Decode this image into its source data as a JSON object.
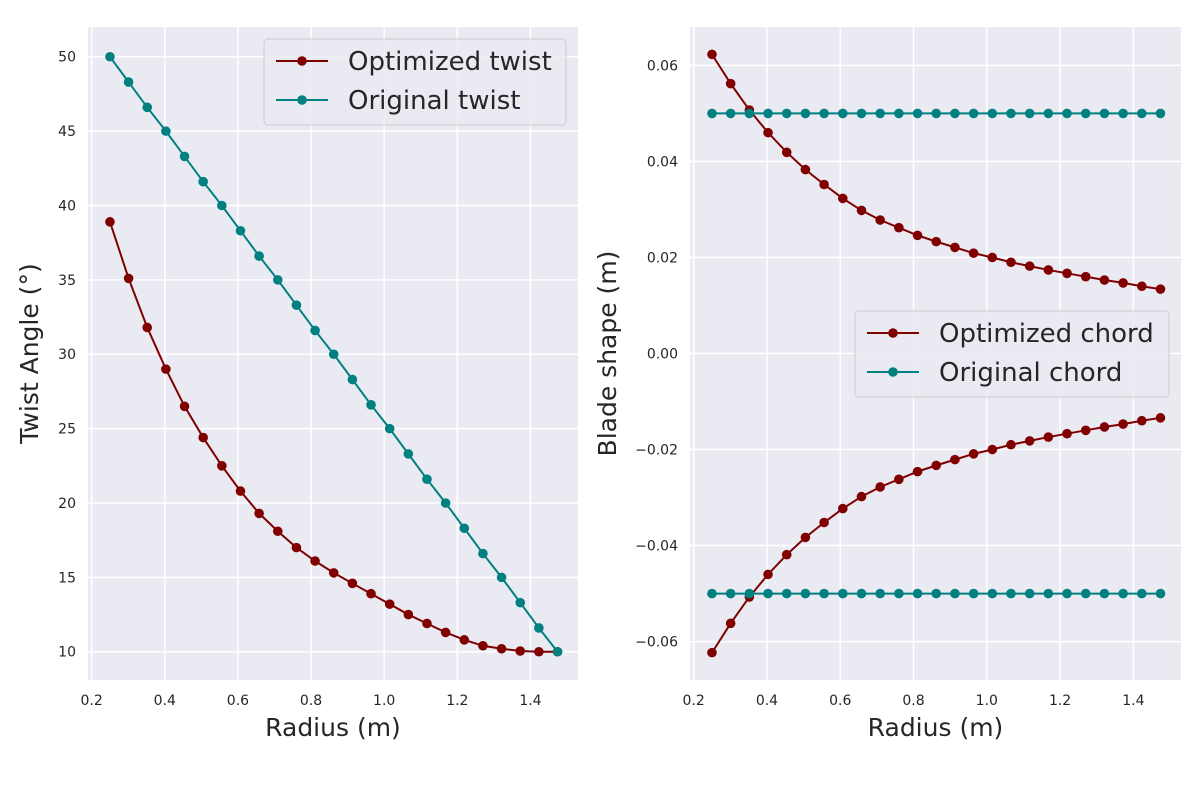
{
  "chart_data": [
    {
      "type": "line",
      "xlabel": "Radius (m)",
      "ylabel": "Twist Angle (°)",
      "xlim": [
        0.19,
        1.53
      ],
      "ylim": [
        8.1,
        52
      ],
      "xticks": [
        "0.2",
        "0.4",
        "0.6",
        "0.8",
        "1.0",
        "1.2",
        "1.4"
      ],
      "xtick_values": [
        0.2,
        0.4,
        0.6,
        0.8,
        1.0,
        1.2,
        1.4
      ],
      "yticks": [
        "10",
        "15",
        "20",
        "25",
        "30",
        "35",
        "40",
        "45",
        "50"
      ],
      "ytick_values": [
        10,
        15,
        20,
        25,
        30,
        35,
        40,
        45,
        50
      ],
      "grid": true,
      "legend_position": "top-right",
      "x": [
        0.25,
        0.301,
        0.352,
        0.403,
        0.454,
        0.505,
        0.556,
        0.607,
        0.658,
        0.709,
        0.76,
        0.811,
        0.862,
        0.913,
        0.964,
        1.015,
        1.066,
        1.117,
        1.168,
        1.219,
        1.27,
        1.321,
        1.372,
        1.423,
        1.474
      ],
      "series": [
        {
          "name": "Optimized twist",
          "color": "#800000",
          "values": [
            38.9,
            35.1,
            31.8,
            29.0,
            26.5,
            24.4,
            22.5,
            20.8,
            19.3,
            18.1,
            17.0,
            16.1,
            15.3,
            14.6,
            13.9,
            13.2,
            12.5,
            11.9,
            11.3,
            10.8,
            10.4,
            10.2,
            10.05,
            10.0,
            10.0
          ]
        },
        {
          "name": "Original twist",
          "color": "#008080",
          "values": [
            50.0,
            48.3,
            46.6,
            45.0,
            43.3,
            41.6,
            40.0,
            38.3,
            36.6,
            35.0,
            33.3,
            31.6,
            30.0,
            28.3,
            26.6,
            25.0,
            23.3,
            21.6,
            20.0,
            18.3,
            16.6,
            15.0,
            13.3,
            11.6,
            10.0
          ]
        }
      ]
    },
    {
      "type": "line",
      "xlabel": "Radius (m)",
      "ylabel": "Blade shape (m)",
      "xlim": [
        0.19,
        1.53
      ],
      "ylim": [
        -0.068,
        0.068
      ],
      "xticks": [
        "0.2",
        "0.4",
        "0.6",
        "0.8",
        "1.0",
        "1.2",
        "1.4"
      ],
      "xtick_values": [
        0.2,
        0.4,
        0.6,
        0.8,
        1.0,
        1.2,
        1.4
      ],
      "yticks": [
        "0.06",
        "0.04",
        "0.02",
        "0.00",
        "−0.02",
        "−0.04",
        "−0.06"
      ],
      "ytick_values": [
        0.06,
        0.04,
        0.02,
        0.0,
        -0.02,
        -0.04,
        -0.06
      ],
      "grid": true,
      "legend_position": "center-right",
      "x": [
        0.25,
        0.301,
        0.352,
        0.403,
        0.454,
        0.505,
        0.556,
        0.607,
        0.658,
        0.709,
        0.76,
        0.811,
        0.862,
        0.913,
        0.964,
        1.015,
        1.066,
        1.117,
        1.168,
        1.219,
        1.27,
        1.321,
        1.372,
        1.423,
        1.474
      ],
      "series": [
        {
          "name": "Optimized chord",
          "color": "#800000",
          "values": [
            0.0623,
            0.0562,
            0.0507,
            0.046,
            0.0419,
            0.0383,
            0.0352,
            0.0323,
            0.0298,
            0.0278,
            0.0262,
            0.0246,
            0.0233,
            0.0221,
            0.0209,
            0.02,
            0.019,
            0.0182,
            0.0174,
            0.0167,
            0.016,
            0.0153,
            0.0147,
            0.014,
            0.0134
          ]
        },
        {
          "color": "#800000",
          "values": [
            -0.0623,
            -0.0562,
            -0.0507,
            -0.046,
            -0.0419,
            -0.0383,
            -0.0352,
            -0.0323,
            -0.0298,
            -0.0278,
            -0.0262,
            -0.0246,
            -0.0233,
            -0.0221,
            -0.0209,
            -0.02,
            -0.019,
            -0.0182,
            -0.0174,
            -0.0167,
            -0.016,
            -0.0153,
            -0.0147,
            -0.014,
            -0.0134
          ]
        },
        {
          "name": "Original chord",
          "color": "#008080",
          "values": [
            0.05,
            0.05,
            0.05,
            0.05,
            0.05,
            0.05,
            0.05,
            0.05,
            0.05,
            0.05,
            0.05,
            0.05,
            0.05,
            0.05,
            0.05,
            0.05,
            0.05,
            0.05,
            0.05,
            0.05,
            0.05,
            0.05,
            0.05,
            0.05,
            0.05
          ]
        },
        {
          "color": "#008080",
          "values": [
            -0.05,
            -0.05,
            -0.05,
            -0.05,
            -0.05,
            -0.05,
            -0.05,
            -0.05,
            -0.05,
            -0.05,
            -0.05,
            -0.05,
            -0.05,
            -0.05,
            -0.05,
            -0.05,
            -0.05,
            -0.05,
            -0.05,
            -0.05,
            -0.05,
            -0.05,
            -0.05,
            -0.05,
            -0.05
          ]
        }
      ]
    }
  ],
  "theme": {
    "plot_background": "#eaeaf2",
    "grid_color": "#ffffff",
    "text_color": "#262626"
  }
}
